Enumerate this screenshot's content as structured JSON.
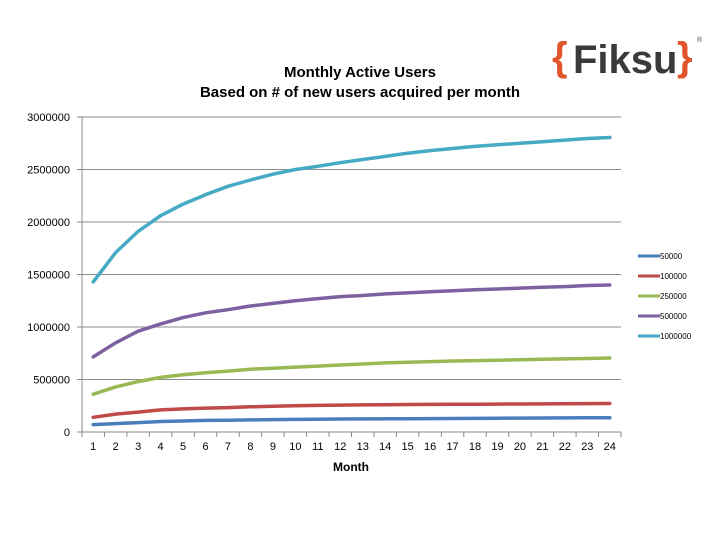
{
  "logo": {
    "brace_open": "{",
    "word": "Fiksu",
    "brace_close": "}",
    "mark": "®",
    "brace_color": "#e0562a",
    "word_color": "#3a3a3a"
  },
  "chart_data": {
    "type": "line",
    "title": "Monthly Active Users",
    "subtitle": "Based on # of new users acquired per month",
    "xlabel": "Month",
    "ylabel": "",
    "x": [
      1,
      2,
      3,
      4,
      5,
      6,
      7,
      8,
      9,
      10,
      11,
      12,
      13,
      14,
      15,
      16,
      17,
      18,
      19,
      20,
      21,
      22,
      23,
      24
    ],
    "ylim": [
      0,
      3000000
    ],
    "yticks": [
      0,
      500000,
      1000000,
      1500000,
      2000000,
      2500000,
      3000000
    ],
    "grid": "horizontal",
    "legend_position": "right",
    "series": [
      {
        "name": "50000",
        "color": "#4a7ebb",
        "values": [
          70000,
          80000,
          90000,
          100000,
          105000,
          110000,
          112000,
          115000,
          118000,
          120000,
          122000,
          124000,
          125000,
          126000,
          127000,
          128000,
          129000,
          130000,
          131000,
          132000,
          133000,
          134000,
          135000,
          136000
        ]
      },
      {
        "name": "100000",
        "color": "#be4b48",
        "values": [
          140000,
          170000,
          190000,
          210000,
          220000,
          228000,
          232000,
          240000,
          245000,
          250000,
          253000,
          256000,
          258000,
          260000,
          262000,
          263000,
          264000,
          265000,
          266000,
          267000,
          268000,
          269000,
          270000,
          271000
        ]
      },
      {
        "name": "250000",
        "color": "#98b954",
        "values": [
          360000,
          430000,
          480000,
          520000,
          545000,
          565000,
          580000,
          598000,
          608000,
          618000,
          628000,
          638000,
          648000,
          658000,
          665000,
          670000,
          676000,
          680000,
          684000,
          688000,
          692000,
          696000,
          700000,
          705000
        ]
      },
      {
        "name": "500000",
        "color": "#7d60a0",
        "values": [
          715000,
          850000,
          960000,
          1030000,
          1090000,
          1135000,
          1165000,
          1200000,
          1225000,
          1250000,
          1270000,
          1290000,
          1300000,
          1315000,
          1325000,
          1335000,
          1345000,
          1355000,
          1362000,
          1370000,
          1378000,
          1385000,
          1395000,
          1400000
        ]
      },
      {
        "name": "1000000",
        "color": "#46aac5",
        "values": [
          1430000,
          1710000,
          1910000,
          2060000,
          2170000,
          2260000,
          2340000,
          2400000,
          2455000,
          2500000,
          2530000,
          2565000,
          2595000,
          2625000,
          2655000,
          2680000,
          2700000,
          2720000,
          2735000,
          2750000,
          2765000,
          2780000,
          2795000,
          2805000
        ]
      }
    ]
  }
}
